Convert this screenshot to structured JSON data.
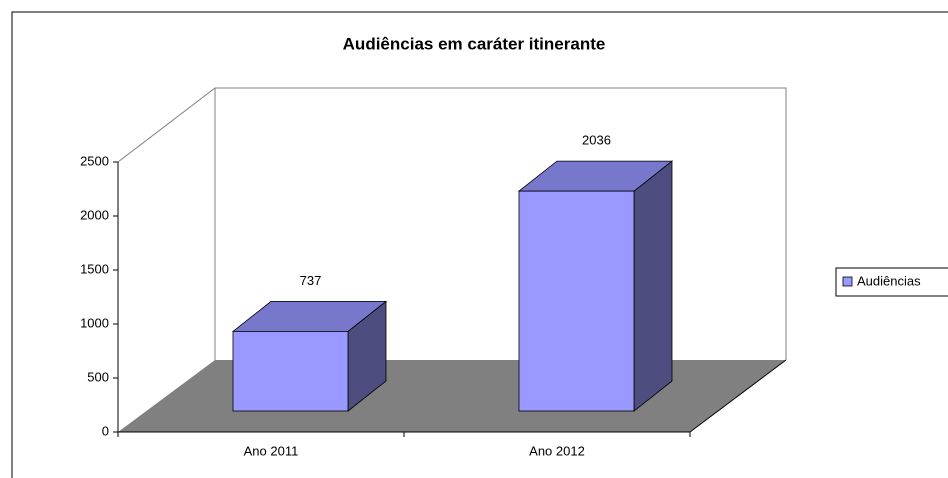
{
  "chart_data": {
    "type": "bar",
    "title": "Audiências em caráter itinerante",
    "categories": [
      "Ano 2011",
      "Ano 2012"
    ],
    "series": [
      {
        "name": "Audiências",
        "color": "#9999ff",
        "values": [
          737,
          2036
        ]
      }
    ],
    "ylim": [
      0,
      2500
    ],
    "yticks": [
      0,
      500,
      1000,
      1500,
      2000,
      2500
    ],
    "grid": false,
    "legend": "right",
    "data_labels": true
  }
}
